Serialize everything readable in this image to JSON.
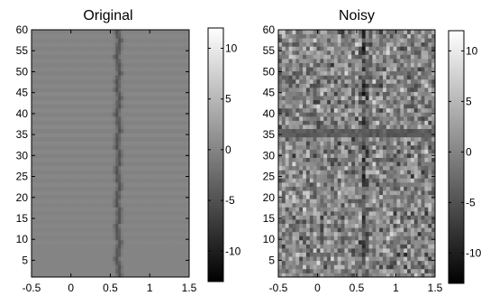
{
  "chart_data": [
    {
      "type": "heatmap",
      "title": "Original",
      "xlabel": "",
      "ylabel": "",
      "xlim": [
        -0.5,
        1.5
      ],
      "ylim": [
        1,
        60
      ],
      "xticks": [
        "-0.5",
        "0",
        "0.5",
        "1",
        "1.5"
      ],
      "yticks": [
        "5",
        "10",
        "15",
        "20",
        "25",
        "30",
        "35",
        "40",
        "45",
        "50",
        "55",
        "60"
      ],
      "colormap": "gray",
      "clim": [
        -13,
        12
      ],
      "description_values": {
        "background": 0,
        "feature_center_x": 0.6,
        "feature_min": -5
      },
      "colorbar_ticks": [
        "10",
        "5",
        "0",
        "-5",
        "-10"
      ]
    },
    {
      "type": "heatmap",
      "title": "Noisy",
      "xlabel": "",
      "ylabel": "",
      "xlim": [
        -0.5,
        1.5
      ],
      "ylim": [
        1,
        60
      ],
      "xticks": [
        "-0.5",
        "0",
        "0.5",
        "1",
        "1.5"
      ],
      "yticks": [
        "5",
        "10",
        "15",
        "20",
        "25",
        "30",
        "35",
        "40",
        "45",
        "50",
        "55",
        "60"
      ],
      "colormap": "gray",
      "clim": [
        -13,
        12
      ],
      "dark_row_y": 35.5,
      "colorbar_ticks": [
        "10",
        "5",
        "0",
        "-5",
        "-10"
      ]
    }
  ]
}
